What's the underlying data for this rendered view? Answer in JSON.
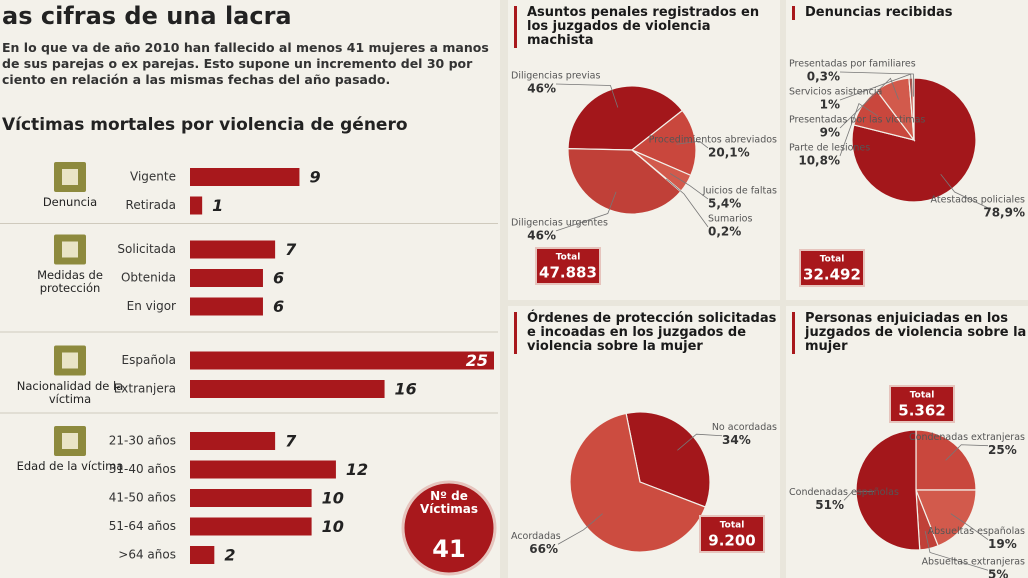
{
  "header": {
    "title": "as cifras de una lacra",
    "intro": "En lo que va de año 2010 han fallecido al menos 41 mujeres a manos de sus parejas o ex parejas. Esto supone un incremento del 30 por ciento en relación a las mismas fechas del año pasado."
  },
  "chart_data": [
    {
      "type": "bar",
      "orientation": "horizontal",
      "title": "Víctimas mortales por violencia de género",
      "color": "#a8181c",
      "groups": [
        {
          "label": "Denuncia",
          "categories": [
            "Vigente",
            "Retirada"
          ],
          "values": [
            9,
            1
          ]
        },
        {
          "label": "Medidas de protección",
          "categories": [
            "Solicitada",
            "Obtenida",
            "En vigor"
          ],
          "values": [
            7,
            6,
            6
          ]
        },
        {
          "label": "Nacionalidad de la víctima",
          "categories": [
            "Española",
            "Extranjera"
          ],
          "values": [
            25,
            16
          ]
        },
        {
          "label": "Edad de la víctima",
          "categories": [
            "21-30 años",
            "31-40 años",
            "41-50 años",
            "51-64 años",
            ">64 años"
          ],
          "values": [
            7,
            12,
            10,
            10,
            2
          ]
        }
      ],
      "total": {
        "label": "Nº de Víctimas",
        "value": 41
      }
    },
    {
      "type": "pie",
      "title": "Asuntos penales registrados en los juzgados de violencia machista",
      "categories": [
        "Diligencias previas",
        "Procedimientos abreviados",
        "Juicios de faltas",
        "Sumarios",
        "Diligencias urgentes"
      ],
      "values": [
        46,
        20.1,
        5.4,
        0.2,
        46
      ],
      "value_labels": [
        "46%",
        "20,1%",
        "5,4%",
        "0,2%",
        "46%"
      ],
      "colors": [
        "#a3171b",
        "#c9473d",
        "#d25a4c",
        "#c9473d",
        "#c04038"
      ],
      "total": {
        "label": "Total",
        "value": 47883,
        "value_label": "47.883"
      }
    },
    {
      "type": "pie",
      "title": "Denuncias recibidas",
      "categories": [
        "Atestados policiales",
        "Parte de lesiones",
        "Presentadas por las víctimas",
        "Servicios asistencia",
        "Presentadas por familiares"
      ],
      "values": [
        78.9,
        10.8,
        9,
        1,
        0.3
      ],
      "value_labels": [
        "78,9%",
        "10,8%",
        "9%",
        "1%",
        "0,3%"
      ],
      "colors": [
        "#a3171b",
        "#c9473d",
        "#d25a4c",
        "#c04038",
        "#c9473d"
      ],
      "total": {
        "label": "Total",
        "value": 32492,
        "value_label": "32.492"
      }
    },
    {
      "type": "pie",
      "title": "Órdenes de protección solicitadas e incoadas en los juzgados de violencia sobre la mujer",
      "categories": [
        "No acordadas",
        "Acordadas"
      ],
      "values": [
        34,
        66
      ],
      "value_labels": [
        "34%",
        "66%"
      ],
      "colors": [
        "#a3171b",
        "#cc4c40"
      ],
      "total": {
        "label": "Total",
        "value": 9200,
        "value_label": "9.200"
      }
    },
    {
      "type": "pie",
      "title": "Personas enjuiciadas en los juzgados de violencia sobre la mujer",
      "categories": [
        "Condenadas extranjeras",
        "Absueltas españolas",
        "Absueltas extranjeras",
        "Condenadas españolas"
      ],
      "values": [
        25,
        19,
        5,
        51
      ],
      "value_labels": [
        "25%",
        "19%",
        "5%",
        "51%"
      ],
      "colors": [
        "#c9473d",
        "#d25a4c",
        "#c04038",
        "#a3171b"
      ],
      "total": {
        "label": "Total",
        "value": 5362,
        "value_label": "5.362"
      }
    }
  ]
}
